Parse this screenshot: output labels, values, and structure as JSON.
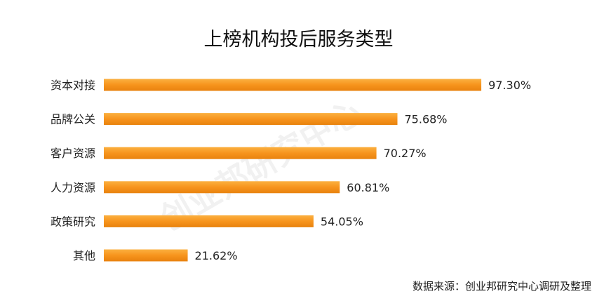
{
  "chart_data": {
    "type": "bar",
    "orientation": "horizontal",
    "title": "上榜机构投后服务类型",
    "categories": [
      "资本对接",
      "品牌公关",
      "客户资源",
      "人力资源",
      "政策研究",
      "其他"
    ],
    "values": [
      97.3,
      75.68,
      70.27,
      60.81,
      54.05,
      21.62
    ],
    "value_labels": [
      "97.30%",
      "75.68%",
      "70.27%",
      "60.81%",
      "54.05%",
      "21.62%"
    ],
    "unit": "%",
    "xlim": [
      0,
      100
    ],
    "grid": false,
    "legend": "none",
    "bar_color": "#F7941D"
  },
  "watermark": "创业邦研究中心",
  "source_note": "数据来源：创业邦研究中心调研及整理"
}
